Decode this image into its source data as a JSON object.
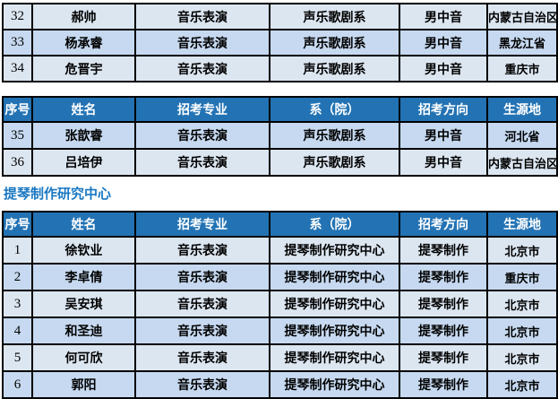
{
  "colors": {
    "header_bg": "#2373b4",
    "header_text": "#ffffff",
    "row_light": "#dce6f1",
    "row_dark": "#c6d9f0",
    "border_color": "#000000",
    "title_color": "#1a78c2"
  },
  "columns": [
    "序号",
    "姓名",
    "招考专业",
    "系（院）",
    "招考方向",
    "生源地"
  ],
  "section_title": "提琴制作研究中心",
  "tables": {
    "top": {
      "rows": [
        {
          "shade": "light",
          "cells": [
            "32",
            "郝帅",
            "音乐表演",
            "声乐歌剧系",
            "男中音",
            "内蒙古自治区"
          ]
        },
        {
          "shade": "dark",
          "cells": [
            "33",
            "杨承睿",
            "音乐表演",
            "声乐歌剧系",
            "男中音",
            "黑龙江省"
          ]
        },
        {
          "shade": "light",
          "cells": [
            "34",
            "危晋宇",
            "音乐表演",
            "声乐歌剧系",
            "男中音",
            "重庆市"
          ]
        }
      ]
    },
    "middle": {
      "rows": [
        {
          "shade": "dark",
          "cells": [
            "35",
            "张歆睿",
            "音乐表演",
            "声乐歌剧系",
            "男中音",
            "河北省"
          ]
        },
        {
          "shade": "light",
          "cells": [
            "36",
            "吕培伊",
            "音乐表演",
            "声乐歌剧系",
            "男中音",
            "内蒙古自治区"
          ]
        }
      ]
    },
    "bottom": {
      "rows": [
        {
          "shade": "light",
          "cells": [
            "1",
            "徐钦业",
            "音乐表演",
            "提琴制作研究中心",
            "提琴制作",
            "北京市"
          ]
        },
        {
          "shade": "dark",
          "cells": [
            "2",
            "李卓倩",
            "音乐表演",
            "提琴制作研究中心",
            "提琴制作",
            "重庆市"
          ]
        },
        {
          "shade": "light",
          "cells": [
            "3",
            "吴安琪",
            "音乐表演",
            "提琴制作研究中心",
            "提琴制作",
            "北京市"
          ]
        },
        {
          "shade": "dark",
          "cells": [
            "4",
            "和圣迪",
            "音乐表演",
            "提琴制作研究中心",
            "提琴制作",
            "北京市"
          ]
        },
        {
          "shade": "light",
          "cells": [
            "5",
            "何可欣",
            "音乐表演",
            "提琴制作研究中心",
            "提琴制作",
            "北京市"
          ]
        },
        {
          "shade": "dark",
          "cells": [
            "6",
            "郭阳",
            "音乐表演",
            "提琴制作研究中心",
            "提琴制作",
            "北京市"
          ]
        }
      ]
    }
  }
}
